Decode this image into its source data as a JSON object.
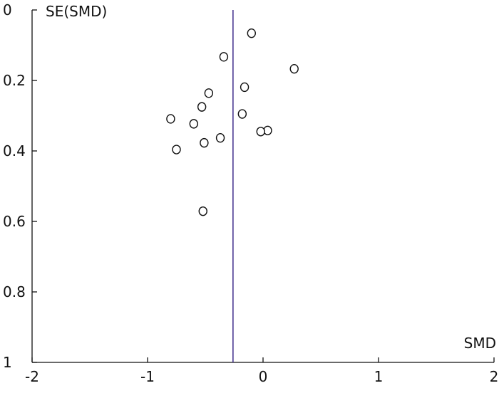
{
  "chart_data": {
    "type": "scatter",
    "title": "",
    "xlabel": "SMD",
    "ylabel": "SE(SMD)",
    "xlim": [
      -2,
      2
    ],
    "ylim": [
      0,
      1
    ],
    "y_inverted": true,
    "grid": false,
    "legend": "none",
    "x_ticks": [
      -2,
      -1,
      0,
      1,
      2
    ],
    "x_tick_labels": [
      "-2",
      "-1",
      "0",
      "1",
      "2"
    ],
    "y_ticks": [
      0,
      0.2,
      0.4,
      0.6,
      0.8,
      1
    ],
    "y_tick_labels": [
      "0",
      "0.2",
      "0.4",
      "0.6",
      "0.8",
      "1"
    ],
    "reference_line": {
      "x": -0.26,
      "color": "#3d2b8a"
    },
    "marker": "open-circle",
    "series": [
      {
        "points": [
          {
            "x": -0.1,
            "y": 0.066
          },
          {
            "x": -0.34,
            "y": 0.133
          },
          {
            "x": 0.27,
            "y": 0.167
          },
          {
            "x": -0.16,
            "y": 0.219
          },
          {
            "x": -0.47,
            "y": 0.236
          },
          {
            "x": -0.53,
            "y": 0.275
          },
          {
            "x": -0.18,
            "y": 0.295
          },
          {
            "x": -0.8,
            "y": 0.309
          },
          {
            "x": -0.6,
            "y": 0.323
          },
          {
            "x": 0.04,
            "y": 0.342
          },
          {
            "x": -0.02,
            "y": 0.345
          },
          {
            "x": -0.37,
            "y": 0.363
          },
          {
            "x": -0.51,
            "y": 0.377
          },
          {
            "x": -0.75,
            "y": 0.396
          },
          {
            "x": -0.52,
            "y": 0.571
          }
        ]
      }
    ]
  }
}
